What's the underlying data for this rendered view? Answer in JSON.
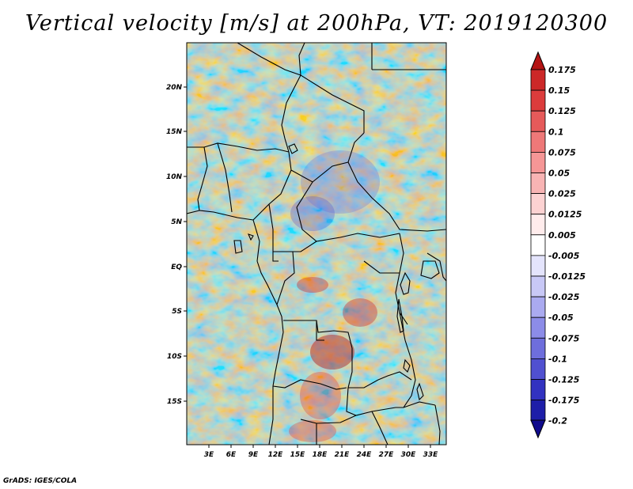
{
  "title": "Vertical velocity [m/s] at 200hPa, VT: 2019120300",
  "credit": "GrADS: IGES/COLA",
  "map": {
    "lat_labels": [
      "20N",
      "15N",
      "10N",
      "5N",
      "EQ",
      "5S",
      "10S",
      "15S"
    ],
    "lon_labels": [
      "3E",
      "6E",
      "9E",
      "12E",
      "15E",
      "18E",
      "21E",
      "24E",
      "27E",
      "30E",
      "33E"
    ]
  },
  "colorbar": {
    "levels": [
      "0.175",
      "0.15",
      "0.125",
      "0.1",
      "0.075",
      "0.05",
      "0.025",
      "0.0125",
      "0.005",
      "-0.005",
      "-0.0125",
      "-0.025",
      "-0.05",
      "-0.075",
      "-0.1",
      "-0.125",
      "-0.175",
      "-0.2"
    ],
    "colors": [
      "#b41414",
      "#cc2828",
      "#dc3c3c",
      "#e65a5a",
      "#ee7878",
      "#f59696",
      "#f8b4b4",
      "#fcd2d2",
      "#ffecec",
      "#ffffff",
      "#e4e4fc",
      "#c8c8f6",
      "#aaaaf0",
      "#8c8ce8",
      "#6e6edc",
      "#5050d0",
      "#3232c0",
      "#1e1ea8",
      "#100a8c"
    ]
  }
}
